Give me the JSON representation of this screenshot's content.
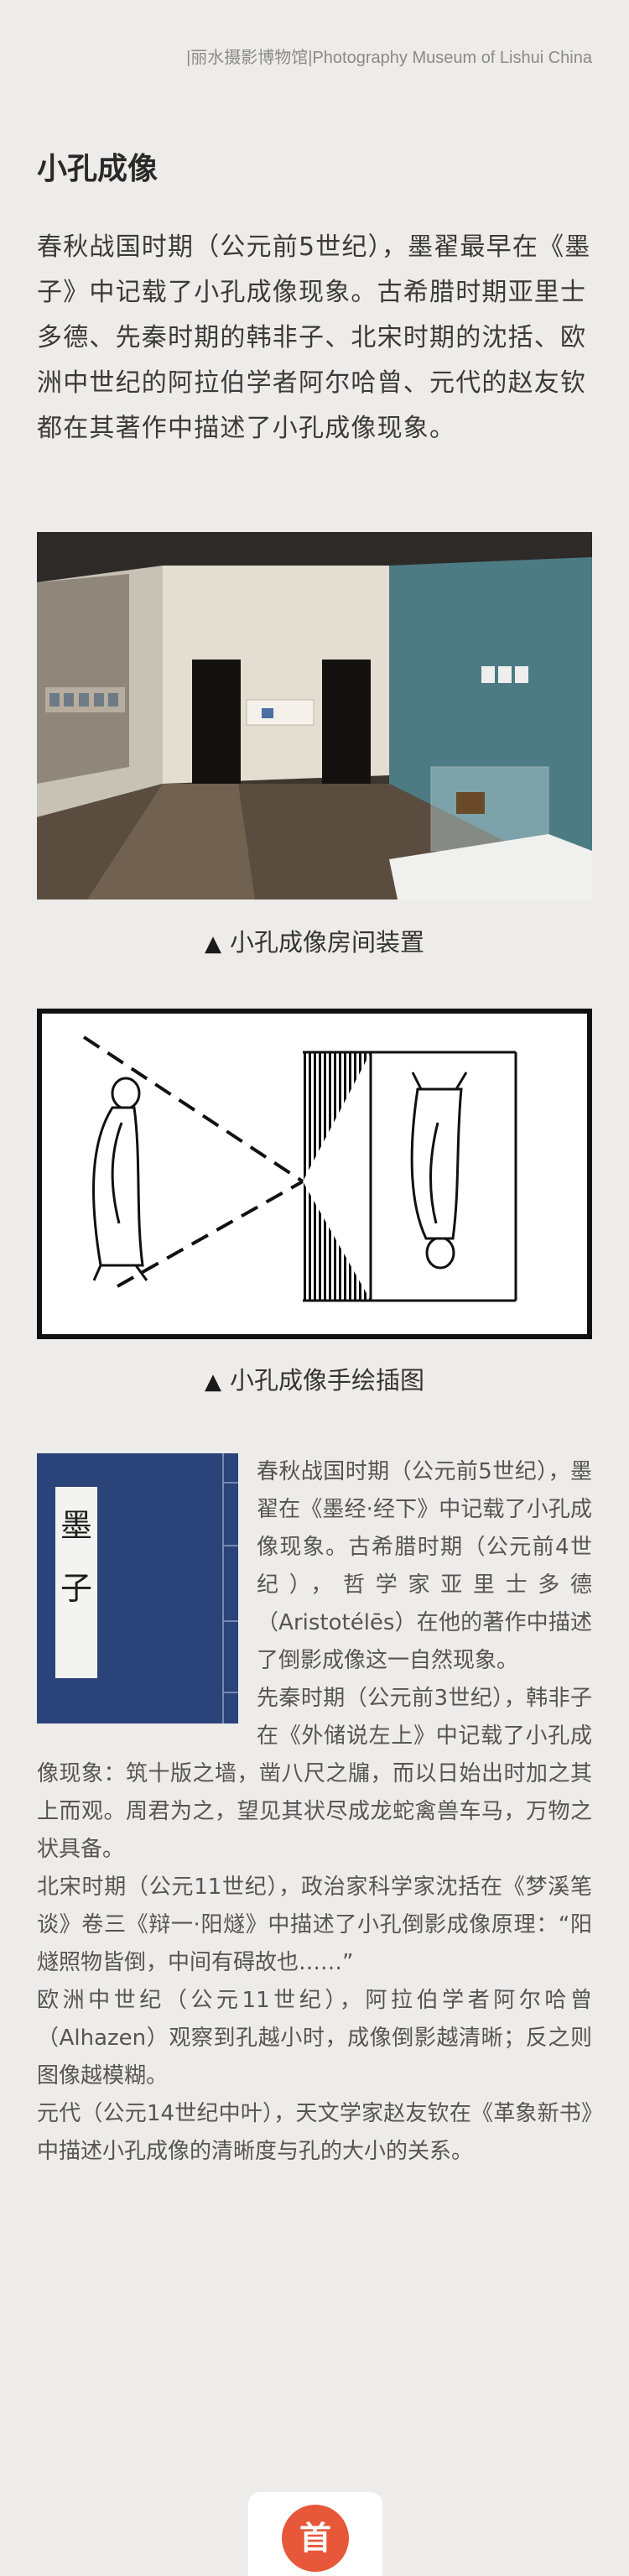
{
  "header": {
    "source_label": "|丽水摄影博物馆|Photography Museum of Lishui China"
  },
  "article": {
    "title": "小孔成像",
    "intro": "春秋战国时期（公元前5世纪），墨翟最早在《墨子》中记载了小孔成像现象。古希腊时期亚里士多德、先秦时期的韩非子、北宋时期的沈括、欧洲中世纪的阿拉伯学者阿尔哈曾、元代的赵友钦都在其著作中描述了小孔成像现象。",
    "photo_caption_marker": "▲",
    "photo_caption": "小孔成像房间装置",
    "drawing_caption_marker": "▲",
    "drawing_caption": "小孔成像手绘插图",
    "book_title_chars": [
      "墨",
      "子"
    ],
    "paragraphs": [
      "春秋战国时期（公元前5世纪），墨翟在《墨经·经下》中记载了小孔成像现象。古希腊时期（公元前4世纪），哲学家亚里士多德（Aristotélēs）在他的著作中描述了倒影成像这一自然现象。",
      "先秦时期（公元前3世纪），韩非子在《外储说左上》中记载了小孔成像现象：筑十版之墙，凿八尺之牖，而以日始出时加之其上而观。周君为之，望见其状尽成龙蛇禽兽车马，万物之状具备。",
      "北宋时期（公元11世纪），政治家科学家沈括在《梦溪笔谈》卷三《辩一·阳燧》中描述了小孔倒影成像原理：“阳燧照物皆倒，中间有碍故也……”",
      "欧洲中世纪（公元11世纪），阿拉伯学者阿尔哈曾（Alhazen）观察到孔越小时，成像倒影越清晰；反之则图像越模糊。",
      "元代（公元14世纪中叶），天文学家赵友钦在《革象新书》中描述小孔成像的清晰度与孔的大小的关系。"
    ]
  },
  "footer": {
    "home_label": "首"
  },
  "colors": {
    "background": "#edecea",
    "book_cover": "#2a4479",
    "home_button": "#e7573a"
  },
  "icons": {
    "home_button": "home-icon",
    "caption_marker": "triangle-up-icon"
  }
}
